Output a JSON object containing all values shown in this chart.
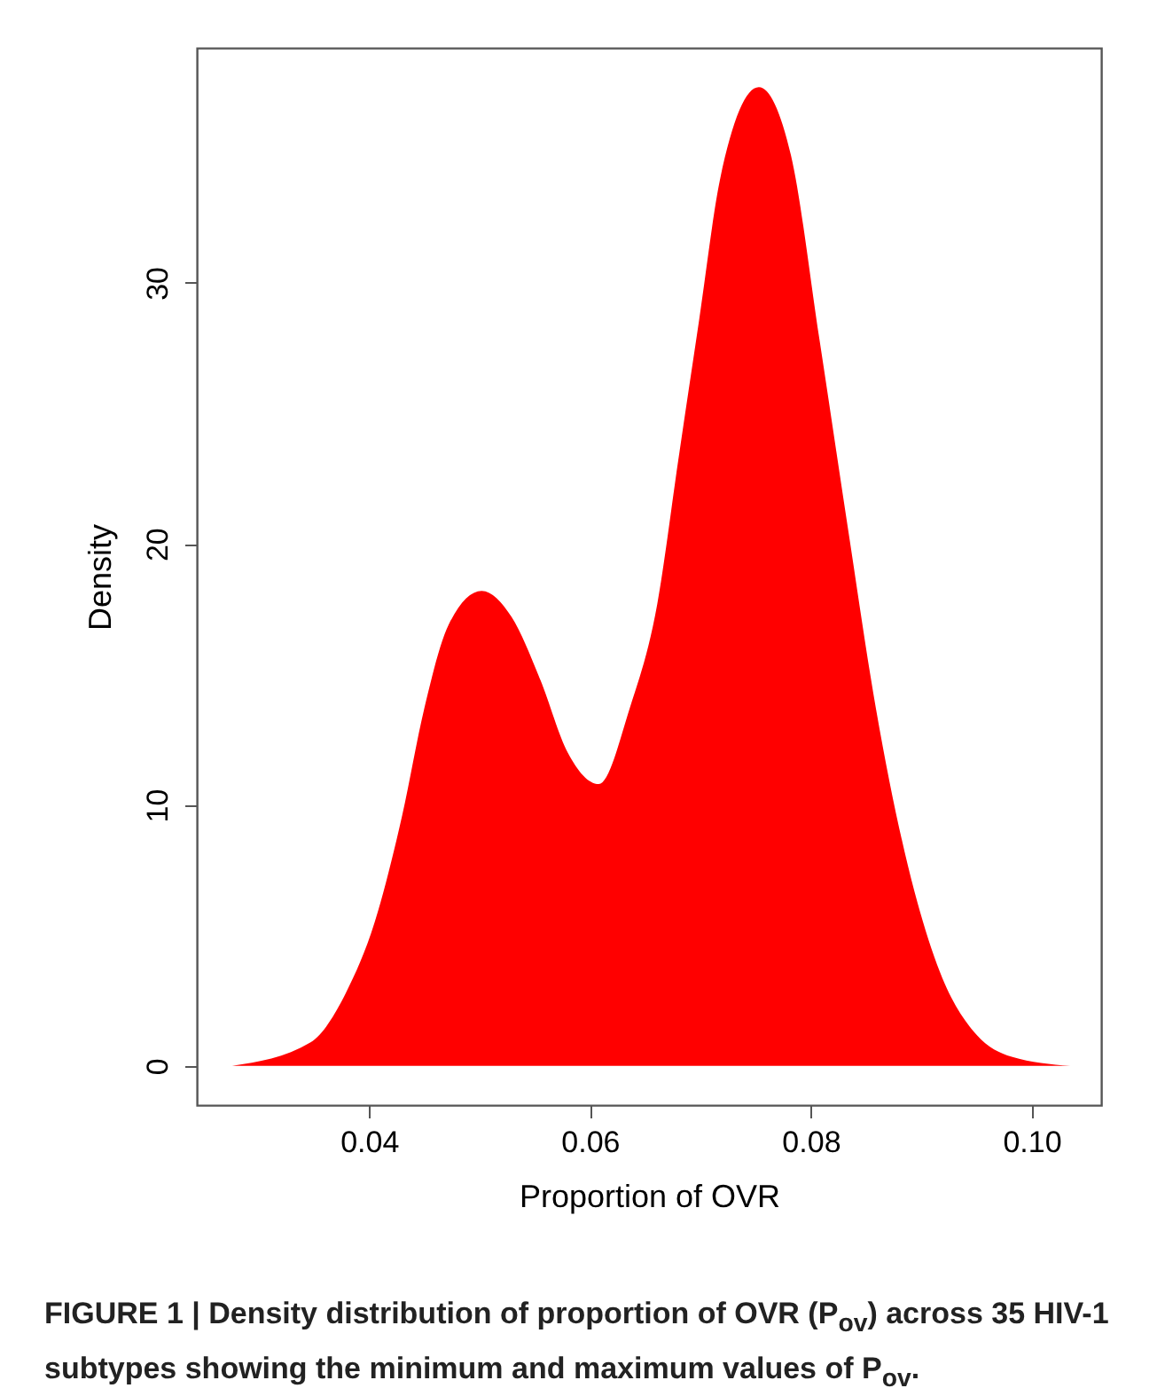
{
  "chart_data": {
    "type": "area",
    "xlabel": "Proportion of OVR",
    "ylabel": "Density",
    "annotations": [
      "FIGURE 1 | Density distribution of proportion of OVR (P$_{ov}$) across 35 HIV-1 subtypes showing the minimum and maximum values of P$_{ov}$."
    ],
    "x": [
      0.0276,
      0.0347,
      0.0379,
      0.0405,
      0.043,
      0.045,
      0.0472,
      0.0502,
      0.0529,
      0.0555,
      0.058,
      0.0608,
      0.0636,
      0.0661,
      0.068,
      0.0699,
      0.0718,
      0.0753,
      0.0782,
      0.0808,
      0.0834,
      0.0859,
      0.0885,
      0.0917,
      0.095,
      0.0982,
      0.1035
    ],
    "series": [
      {
        "color": "#ff0000",
        "values": [
          0,
          0.9,
          2.8,
          5.5,
          9.6,
          13.7,
          16.9,
          18.2,
          17.2,
          14.8,
          12.0,
          10.8,
          13.7,
          17.7,
          23.2,
          28.6,
          34.0,
          37.5,
          34.9,
          27.8,
          20.5,
          13.7,
          8.2,
          3.6,
          1.2,
          0.35,
          0
        ]
      }
    ],
    "xlim": [
      0.0244,
      0.1063
    ],
    "xticks": [
      0.04,
      0.06,
      0.08,
      {
        "value": 0.1,
        "label": "0.10"
      }
    ],
    "ylim": [
      -1.5,
      39
    ],
    "yticks": [
      0,
      10,
      20,
      30
    ],
    "grid": false
  }
}
